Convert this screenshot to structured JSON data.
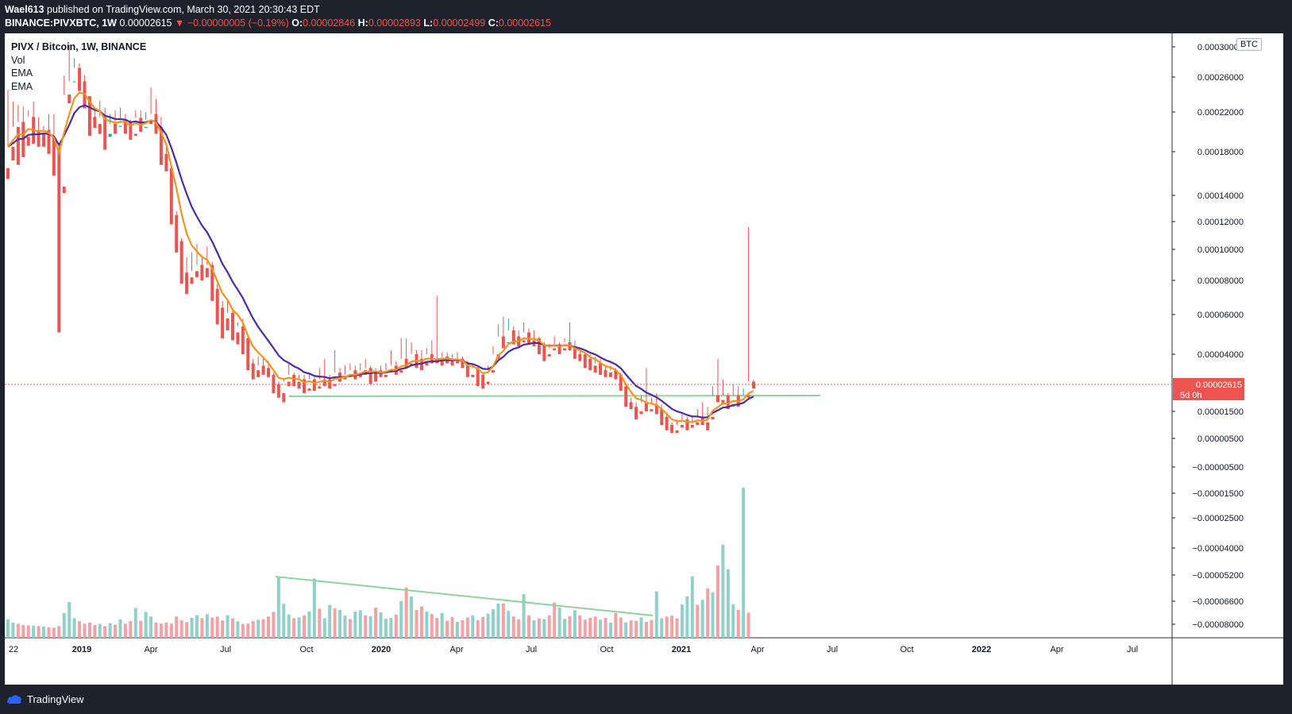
{
  "header": {
    "author": "Wael613",
    "published": " published on TradingView.com, March 30, 2021 20:30:43 EDT",
    "ticker": "BINANCE:PIVXBTC, 1W",
    "last": "0.00002615",
    "change": "▼ −0.00000005 (−0.19%)",
    "o_label": "O:",
    "o_val": "0.00002846",
    "h_label": "H:",
    "h_val": "0.00002893",
    "l_label": "L:",
    "l_val": "0.00002499",
    "c_label": "C:",
    "c_val": "0.00002615"
  },
  "legend": {
    "symbol": "PIVX / Bitcoin, 1W, BINANCE",
    "vol": "Vol",
    "ema1": "EMA",
    "ema2": "EMA"
  },
  "currency_button": "BTC",
  "footer": {
    "brand": "TradingView"
  },
  "colors": {
    "up": "#26a69a",
    "down": "#ef5350",
    "vol_up": "#8fd1c9",
    "vol_down": "#f5a0a4",
    "ema_fast": "#f7931a",
    "ema_slow": "#4a2ba8",
    "trendline": "#8fd49a",
    "price_line": "#ef5350"
  },
  "chart_data": {
    "type": "candlestick",
    "x_tick_labels": [
      "22",
      "2019",
      "Apr",
      "Jul",
      "Oct",
      "2020",
      "Apr",
      "Jul",
      "Oct",
      "2021",
      "Apr",
      "Jul",
      "Oct",
      "2022",
      "Apr",
      "Jul"
    ],
    "y_tick_labels": [
      "0.00030000",
      "0.00026000",
      "0.00022000",
      "0.00018000",
      "0.00014000",
      "0.00012000",
      "0.00010000",
      "0.00008000",
      "0.00006000",
      "0.00004000",
      "0.00002615",
      "0.00001500",
      "0.00000500",
      "−0.00000500",
      "−0.00001500",
      "−0.00002500",
      "−0.00004000",
      "−0.00005200",
      "−0.00006600",
      "−0.00008000"
    ],
    "y_tick_values": [
      0.0003,
      0.00026,
      0.00022,
      0.00018,
      0.00014,
      0.00012,
      0.0001,
      8e-05,
      6e-05,
      4e-05,
      2.615e-05,
      1.5e-05,
      5e-06,
      -5e-06,
      -1.5e-05,
      -2.5e-05,
      -4e-05,
      -5.2e-05,
      -6.6e-05,
      -8e-05
    ],
    "last_price_label": "0.00002615",
    "countdown_label": "5d 0h",
    "candles_ohlc": [
      [
        0.000165,
        0.000185,
        0.000245,
        0.000155
      ],
      [
        0.000185,
        0.000205,
        0.000232,
        0.000172
      ],
      [
        0.000205,
        0.00021,
        0.000228,
        0.000168
      ],
      [
        0.00021,
        0.000195,
        0.000226,
        0.000175
      ],
      [
        0.000195,
        0.000215,
        0.000222,
        0.000186
      ],
      [
        0.000215,
        0.0002,
        0.000232,
        0.000188
      ],
      [
        0.0002,
        0.000198,
        0.000215,
        0.000185
      ],
      [
        0.000198,
        0.000202,
        0.000206,
        0.000185
      ],
      [
        0.000202,
        0.000195,
        0.000218,
        0.000178
      ],
      [
        0.000195,
        0.000184,
        0.000218,
        0.000158
      ],
      [
        0.000184,
        0.000148,
        0.000186,
        5.1e-05
      ],
      [
        0.000148,
        0.00024,
        0.000262,
        0.000142
      ],
      [
        0.00024,
        0.000255,
        0.000302,
        0.00023
      ],
      [
        0.000255,
        0.000272,
        0.000285,
        0.000255
      ],
      [
        0.000272,
        0.000255,
        0.000278,
        0.000244
      ],
      [
        0.000255,
        0.000238,
        0.000262,
        0.000224
      ],
      [
        0.000238,
        0.000215,
        0.000238,
        0.000196
      ],
      [
        0.000215,
        0.000208,
        0.000225,
        0.000204
      ],
      [
        0.000208,
        0.000215,
        0.000233,
        0.000198
      ],
      [
        0.000215,
        0.000195,
        0.000225,
        0.000182
      ],
      [
        0.000195,
        0.000208,
        0.000218,
        0.000198
      ],
      [
        0.000208,
        0.000205,
        0.000222,
        0.000198
      ],
      [
        0.000205,
        0.000212,
        0.000225,
        0.000206
      ],
      [
        0.000212,
        0.00021,
        0.000218,
        0.000198
      ],
      [
        0.00021,
        0.000198,
        0.000212,
        0.000192
      ],
      [
        0.000198,
        0.000214,
        0.000222,
        0.000196
      ],
      [
        0.000214,
        0.000204,
        0.000222,
        0.0002
      ],
      [
        0.000204,
        0.000212,
        0.00022,
        0.000205
      ],
      [
        0.000212,
        0.000218,
        0.000248,
        0.000208
      ],
      [
        0.000218,
        0.000205,
        0.000235,
        0.000198
      ],
      [
        0.000205,
        0.000178,
        0.000215,
        0.000168
      ],
      [
        0.000178,
        0.000165,
        0.000185,
        0.000162
      ],
      [
        0.000165,
        0.000125,
        0.000168,
        0.000118
      ],
      [
        0.000125,
        0.000106,
        0.000128,
        9.8e-05
      ],
      [
        0.000106,
        8.5e-05,
        0.000108,
        7.8e-05
      ],
      [
        8.5e-05,
        8.2e-05,
        9.5e-05,
        7.2e-05
      ],
      [
        8.2e-05,
        8.6e-05,
        9.8e-05,
        7.8e-05
      ],
      [
        8.6e-05,
        9e-05,
        0.000104,
        8.2e-05
      ],
      [
        9e-05,
        8.8e-05,
        9.6e-05,
        8e-05
      ],
      [
        8.8e-05,
        9e-05,
        0.000102,
        8.2e-05
      ],
      [
        9e-05,
        7.5e-05,
        9.2e-05,
        6.8e-05
      ],
      [
        7.5e-05,
        6.4e-05,
        7.8e-05,
        5.5e-05
      ],
      [
        6.4e-05,
        5.8e-05,
        6.8e-05,
        4.8e-05
      ],
      [
        5.8e-05,
        6.1e-05,
        6.8e-05,
        5.2e-05
      ],
      [
        6.1e-05,
        5.1e-05,
        6.4e-05,
        4.7e-05
      ],
      [
        5.1e-05,
        5.4e-05,
        5.6e-05,
        4.5e-05
      ],
      [
        5.4e-05,
        4.8e-05,
        5.8e-05,
        4e-05
      ],
      [
        4.8e-05,
        3.6e-05,
        4.9e-05,
        3.3e-05
      ],
      [
        3.6e-05,
        3.3e-05,
        3.8e-05,
        2.9e-05
      ],
      [
        3.3e-05,
        3.5e-05,
        3.9e-05,
        3e-05
      ],
      [
        3.5e-05,
        3.4e-05,
        3.8e-05,
        3.1e-05
      ],
      [
        3.4e-05,
        3.1e-05,
        3.7e-05,
        3e-05
      ],
      [
        3.1e-05,
        2.7e-05,
        3.2e-05,
        2.3e-05
      ],
      [
        2.7e-05,
        2.3e-05,
        2.8e-05,
        2.1e-05
      ],
      [
        2.3e-05,
        2.8e-05,
        2.9e-05,
        1.9e-05
      ],
      [
        2.8e-05,
        3.1e-05,
        3.6e-05,
        2.6e-05
      ],
      [
        3.1e-05,
        2.8e-05,
        3.2e-05,
        2.6e-05
      ],
      [
        2.8e-05,
        2.9e-05,
        3.1e-05,
        2.5e-05
      ],
      [
        2.9e-05,
        2.5e-05,
        3.1e-05,
        2.3e-05
      ],
      [
        2.5e-05,
        2.9e-05,
        3.2e-05,
        2.4e-05
      ],
      [
        2.9e-05,
        2.6e-05,
        3e-05,
        2.4e-05
      ],
      [
        2.6e-05,
        2.9e-05,
        3.4e-05,
        2.5e-05
      ],
      [
        2.9e-05,
        2.9e-05,
        3.8e-05,
        2.6e-05
      ],
      [
        2.9e-05,
        2.7e-05,
        3.1e-05,
        2.5e-05
      ],
      [
        2.7e-05,
        3.2e-05,
        4.2e-05,
        2.6e-05
      ],
      [
        3.2e-05,
        3e-05,
        3.4e-05,
        2.8e-05
      ],
      [
        3e-05,
        3.1e-05,
        3.5e-05,
        2.9e-05
      ],
      [
        3.1e-05,
        3.3e-05,
        3.6e-05,
        3e-05
      ],
      [
        3.3e-05,
        3.1e-05,
        3.5e-05,
        2.9e-05
      ],
      [
        3.1e-05,
        3.3e-05,
        3.6e-05,
        3e-05
      ],
      [
        3.3e-05,
        3.4e-05,
        3.8e-05,
        3.1e-05
      ],
      [
        3.4e-05,
        3.2e-05,
        3.5e-05,
        2.7e-05
      ],
      [
        3.2e-05,
        3.3e-05,
        3.4e-05,
        2.8e-05
      ],
      [
        3.3e-05,
        3.1e-05,
        3.5e-05,
        3e-05
      ],
      [
        3.1e-05,
        3.3e-05,
        3.6e-05,
        3e-05
      ],
      [
        3.3e-05,
        3.5e-05,
        4.2e-05,
        3.2e-05
      ],
      [
        3.5e-05,
        3.3e-05,
        3.7e-05,
        3.1e-05
      ],
      [
        3.3e-05,
        3.8e-05,
        4.8e-05,
        3.2e-05
      ],
      [
        3.8e-05,
        3.6e-05,
        4.8e-05,
        3.4e-05
      ],
      [
        3.6e-05,
        4e-05,
        4.6e-05,
        3.5e-05
      ],
      [
        4e-05,
        3.8e-05,
        4.2e-05,
        3.4e-05
      ],
      [
        3.8e-05,
        3.7e-05,
        4.2e-05,
        3.3e-05
      ],
      [
        3.7e-05,
        4e-05,
        4.3e-05,
        3.5e-05
      ],
      [
        4e-05,
        3.8e-05,
        4.7e-05,
        3.6e-05
      ],
      [
        3.8e-05,
        3.7e-05,
        7.1e-05,
        3.6e-05
      ],
      [
        3.7e-05,
        3.9e-05,
        4.1e-05,
        3.5e-05
      ],
      [
        3.9e-05,
        3.8e-05,
        4.1e-05,
        3.6e-05
      ],
      [
        3.8e-05,
        3.7e-05,
        4e-05,
        3.5e-05
      ],
      [
        3.7e-05,
        3.8e-05,
        4.1e-05,
        3.6e-05
      ],
      [
        3.8e-05,
        3.6e-05,
        3.9e-05,
        3.4e-05
      ],
      [
        3.6e-05,
        3.1e-05,
        3.7e-05,
        3e-05
      ],
      [
        3.1e-05,
        3.4e-05,
        3.6e-05,
        3e-05
      ],
      [
        3.4e-05,
        3.1e-05,
        3.5e-05,
        2.6e-05
      ],
      [
        3.1e-05,
        2.8e-05,
        3.2e-05,
        2.5e-05
      ],
      [
        2.8e-05,
        3.3e-05,
        3.5e-05,
        2.7e-05
      ],
      [
        3.3e-05,
        4e-05,
        4.4e-05,
        3.2e-05
      ],
      [
        4e-05,
        4.9e-05,
        5.5e-05,
        3.8e-05
      ],
      [
        4.9e-05,
        4.6e-05,
        5.9e-05,
        4.3e-05
      ],
      [
        4.6e-05,
        5.2e-05,
        5.8e-05,
        4.6e-05
      ],
      [
        5.2e-05,
        4.9e-05,
        5.4e-05,
        4.5e-05
      ],
      [
        4.9e-05,
        4.7e-05,
        5.2e-05,
        4.4e-05
      ],
      [
        4.7e-05,
        5.1e-05,
        5.6e-05,
        4.6e-05
      ],
      [
        5.1e-05,
        4.7e-05,
        5.3e-05,
        4.5e-05
      ],
      [
        4.7e-05,
        4.8e-05,
        5.2e-05,
        4.4e-05
      ],
      [
        4.8e-05,
        4.5e-05,
        4.9e-05,
        4e-05
      ],
      [
        4.5e-05,
        4e-05,
        4.6e-05,
        3.7e-05
      ],
      [
        4e-05,
        4.3e-05,
        4.5e-05,
        3.9e-05
      ],
      [
        4.3e-05,
        4.5e-05,
        4.9e-05,
        4.2e-05
      ],
      [
        4.5e-05,
        4.3e-05,
        4.6e-05,
        4e-05
      ],
      [
        4.3e-05,
        4.6e-05,
        4.8e-05,
        4.2e-05
      ],
      [
        4.6e-05,
        4.4e-05,
        5.6e-05,
        4.2e-05
      ],
      [
        4.4e-05,
        4e-05,
        4.7e-05,
        3.8e-05
      ],
      [
        4e-05,
        4e-05,
        4.3e-05,
        3.7e-05
      ],
      [
        4e-05,
        3.8e-05,
        4.1e-05,
        3.4e-05
      ],
      [
        3.8e-05,
        3.5e-05,
        4e-05,
        3.3e-05
      ],
      [
        3.5e-05,
        3.6e-05,
        3.9e-05,
        3.2e-05
      ],
      [
        3.6e-05,
        3.3e-05,
        3.8e-05,
        3.1e-05
      ],
      [
        3.3e-05,
        3.2e-05,
        3.5e-05,
        3e-05
      ],
      [
        3.2e-05,
        3.3e-05,
        3.5e-05,
        3e-05
      ],
      [
        3.3e-05,
        3.1e-05,
        3.4e-05,
        2.9e-05
      ],
      [
        3.1e-05,
        2.6e-05,
        3.2e-05,
        2.4e-05
      ],
      [
        2.6e-05,
        1.9e-05,
        2.7e-05,
        1.7e-05
      ],
      [
        1.9e-05,
        1.7e-05,
        2.1e-05,
        1.6e-05
      ],
      [
        1.7e-05,
        1.5e-05,
        1.9e-05,
        1.2e-05
      ],
      [
        1.5e-05,
        1.9e-05,
        2.2e-05,
        1.4e-05
      ],
      [
        1.9e-05,
        1.6e-05,
        3.4e-05,
        1.5e-05
      ],
      [
        1.6e-05,
        1.8e-05,
        2.1e-05,
        1.5e-05
      ],
      [
        1.8e-05,
        1.6e-05,
        2.3e-05,
        1.4e-05
      ],
      [
        1.6e-05,
        1.3e-05,
        1.8e-05,
        1e-05
      ],
      [
        1.3e-05,
        1e-05,
        1.4e-05,
        8e-06
      ],
      [
        1e-05,
        8e-06,
        1.1e-05,
        7e-06
      ],
      [
        8e-06,
        1e-05,
        1.2e-05,
        7e-06
      ],
      [
        1e-05,
        1.2e-05,
        1.4e-05,
        9e-06
      ],
      [
        1.2e-05,
        1e-05,
        1.3e-05,
        8e-06
      ],
      [
        1e-05,
        1.1e-05,
        1.3e-05,
        9e-06
      ],
      [
        1.1e-05,
        1.3e-05,
        1.6e-05,
        1e-05
      ],
      [
        1.3e-05,
        1.1e-05,
        1.9e-05,
        1e-05
      ],
      [
        1.1e-05,
        1.3e-05,
        1.7e-05,
        8e-06
      ],
      [
        1.3e-05,
        2.2e-05,
        2.6e-05,
        1.2e-05
      ],
      [
        2.2e-05,
        2e-05,
        3.8e-05,
        1.9e-05
      ],
      [
        2e-05,
        2.2e-05,
        2.9e-05,
        1.8e-05
      ],
      [
        2.2e-05,
        1.8e-05,
        2.3e-05,
        1.6e-05
      ],
      [
        1.8e-05,
        2.2e-05,
        2.7e-05,
        1.7e-05
      ],
      [
        2.2e-05,
        1.9e-05,
        2.6e-05,
        1.7e-05
      ],
      [
        1.9e-05,
        2.2e-05,
        2.5e-05,
        1.9e-05
      ],
      [
        2.2e-05,
        2.8e-05,
        0.000116,
        2.1e-05
      ],
      [
        2.8e-05,
        2.615e-05,
        2.893e-05,
        2.499e-05
      ]
    ],
    "volume": [
      380,
      250,
      210,
      180,
      170,
      160,
      150,
      140,
      120,
      110,
      150,
      680,
      1420,
      420,
      300,
      220,
      260,
      180,
      210,
      150,
      240,
      190,
      380,
      220,
      310,
      980,
      320,
      740,
      500,
      260,
      220,
      260,
      220,
      500,
      340,
      270,
      440,
      560,
      420,
      620,
      450,
      500,
      330,
      560,
      420,
      300,
      210,
      220,
      310,
      360,
      380,
      500,
      740,
      4050,
      1280,
      600,
      420,
      460,
      560,
      760,
      3900,
      940,
      420,
      1180,
      950,
      860,
      540,
      390,
      760,
      840,
      560,
      520,
      1000,
      720,
      400,
      430,
      600,
      1500,
      2800,
      1900,
      860,
      1100,
      760,
      620,
      430,
      680,
      320,
      480,
      280,
      340,
      450,
      560,
      340,
      480,
      640,
      900,
      1300,
      1300,
      800,
      500,
      380,
      2100,
      560,
      340,
      420,
      380,
      560,
      1380,
      1000,
      400,
      520,
      840,
      560,
      360,
      440,
      500,
      360,
      440,
      260,
      680,
      460,
      260,
      340,
      320,
      460,
      280,
      350,
      2400,
      420,
      500,
      540,
      420,
      1220,
      1900,
      4200,
      1200,
      1600,
      2700,
      2300,
      5800,
      9600,
      5200,
      1250,
      860,
      25000,
      700
    ],
    "volume_up": [
      true,
      true,
      false,
      false,
      false,
      true,
      false,
      true,
      false,
      false,
      false,
      true,
      true,
      true,
      false,
      false,
      false,
      false,
      true,
      false,
      true,
      false,
      true,
      false,
      false,
      true,
      false,
      true,
      true,
      false,
      false,
      false,
      false,
      false,
      false,
      false,
      true,
      true,
      false,
      true,
      false,
      false,
      false,
      true,
      false,
      true,
      false,
      false,
      false,
      true,
      false,
      false,
      false,
      true,
      true,
      true,
      false,
      true,
      false,
      true,
      true,
      false,
      true,
      true,
      false,
      true,
      true,
      false,
      true,
      true,
      false,
      true,
      false,
      true,
      true,
      true,
      false,
      true,
      false,
      true,
      false,
      false,
      true,
      false,
      false,
      true,
      false,
      false,
      true,
      false,
      false,
      true,
      false,
      false,
      true,
      true,
      true,
      false,
      true,
      false,
      false,
      true,
      false,
      true,
      false,
      true,
      false,
      false,
      true,
      true,
      false,
      true,
      false,
      false,
      false,
      false,
      true,
      false,
      true,
      false,
      false,
      true,
      false,
      false,
      true,
      false,
      false,
      true,
      true,
      false,
      false,
      false,
      true,
      true,
      true,
      false,
      true,
      false,
      true,
      false,
      true,
      true,
      true,
      false,
      true,
      false
    ]
  }
}
